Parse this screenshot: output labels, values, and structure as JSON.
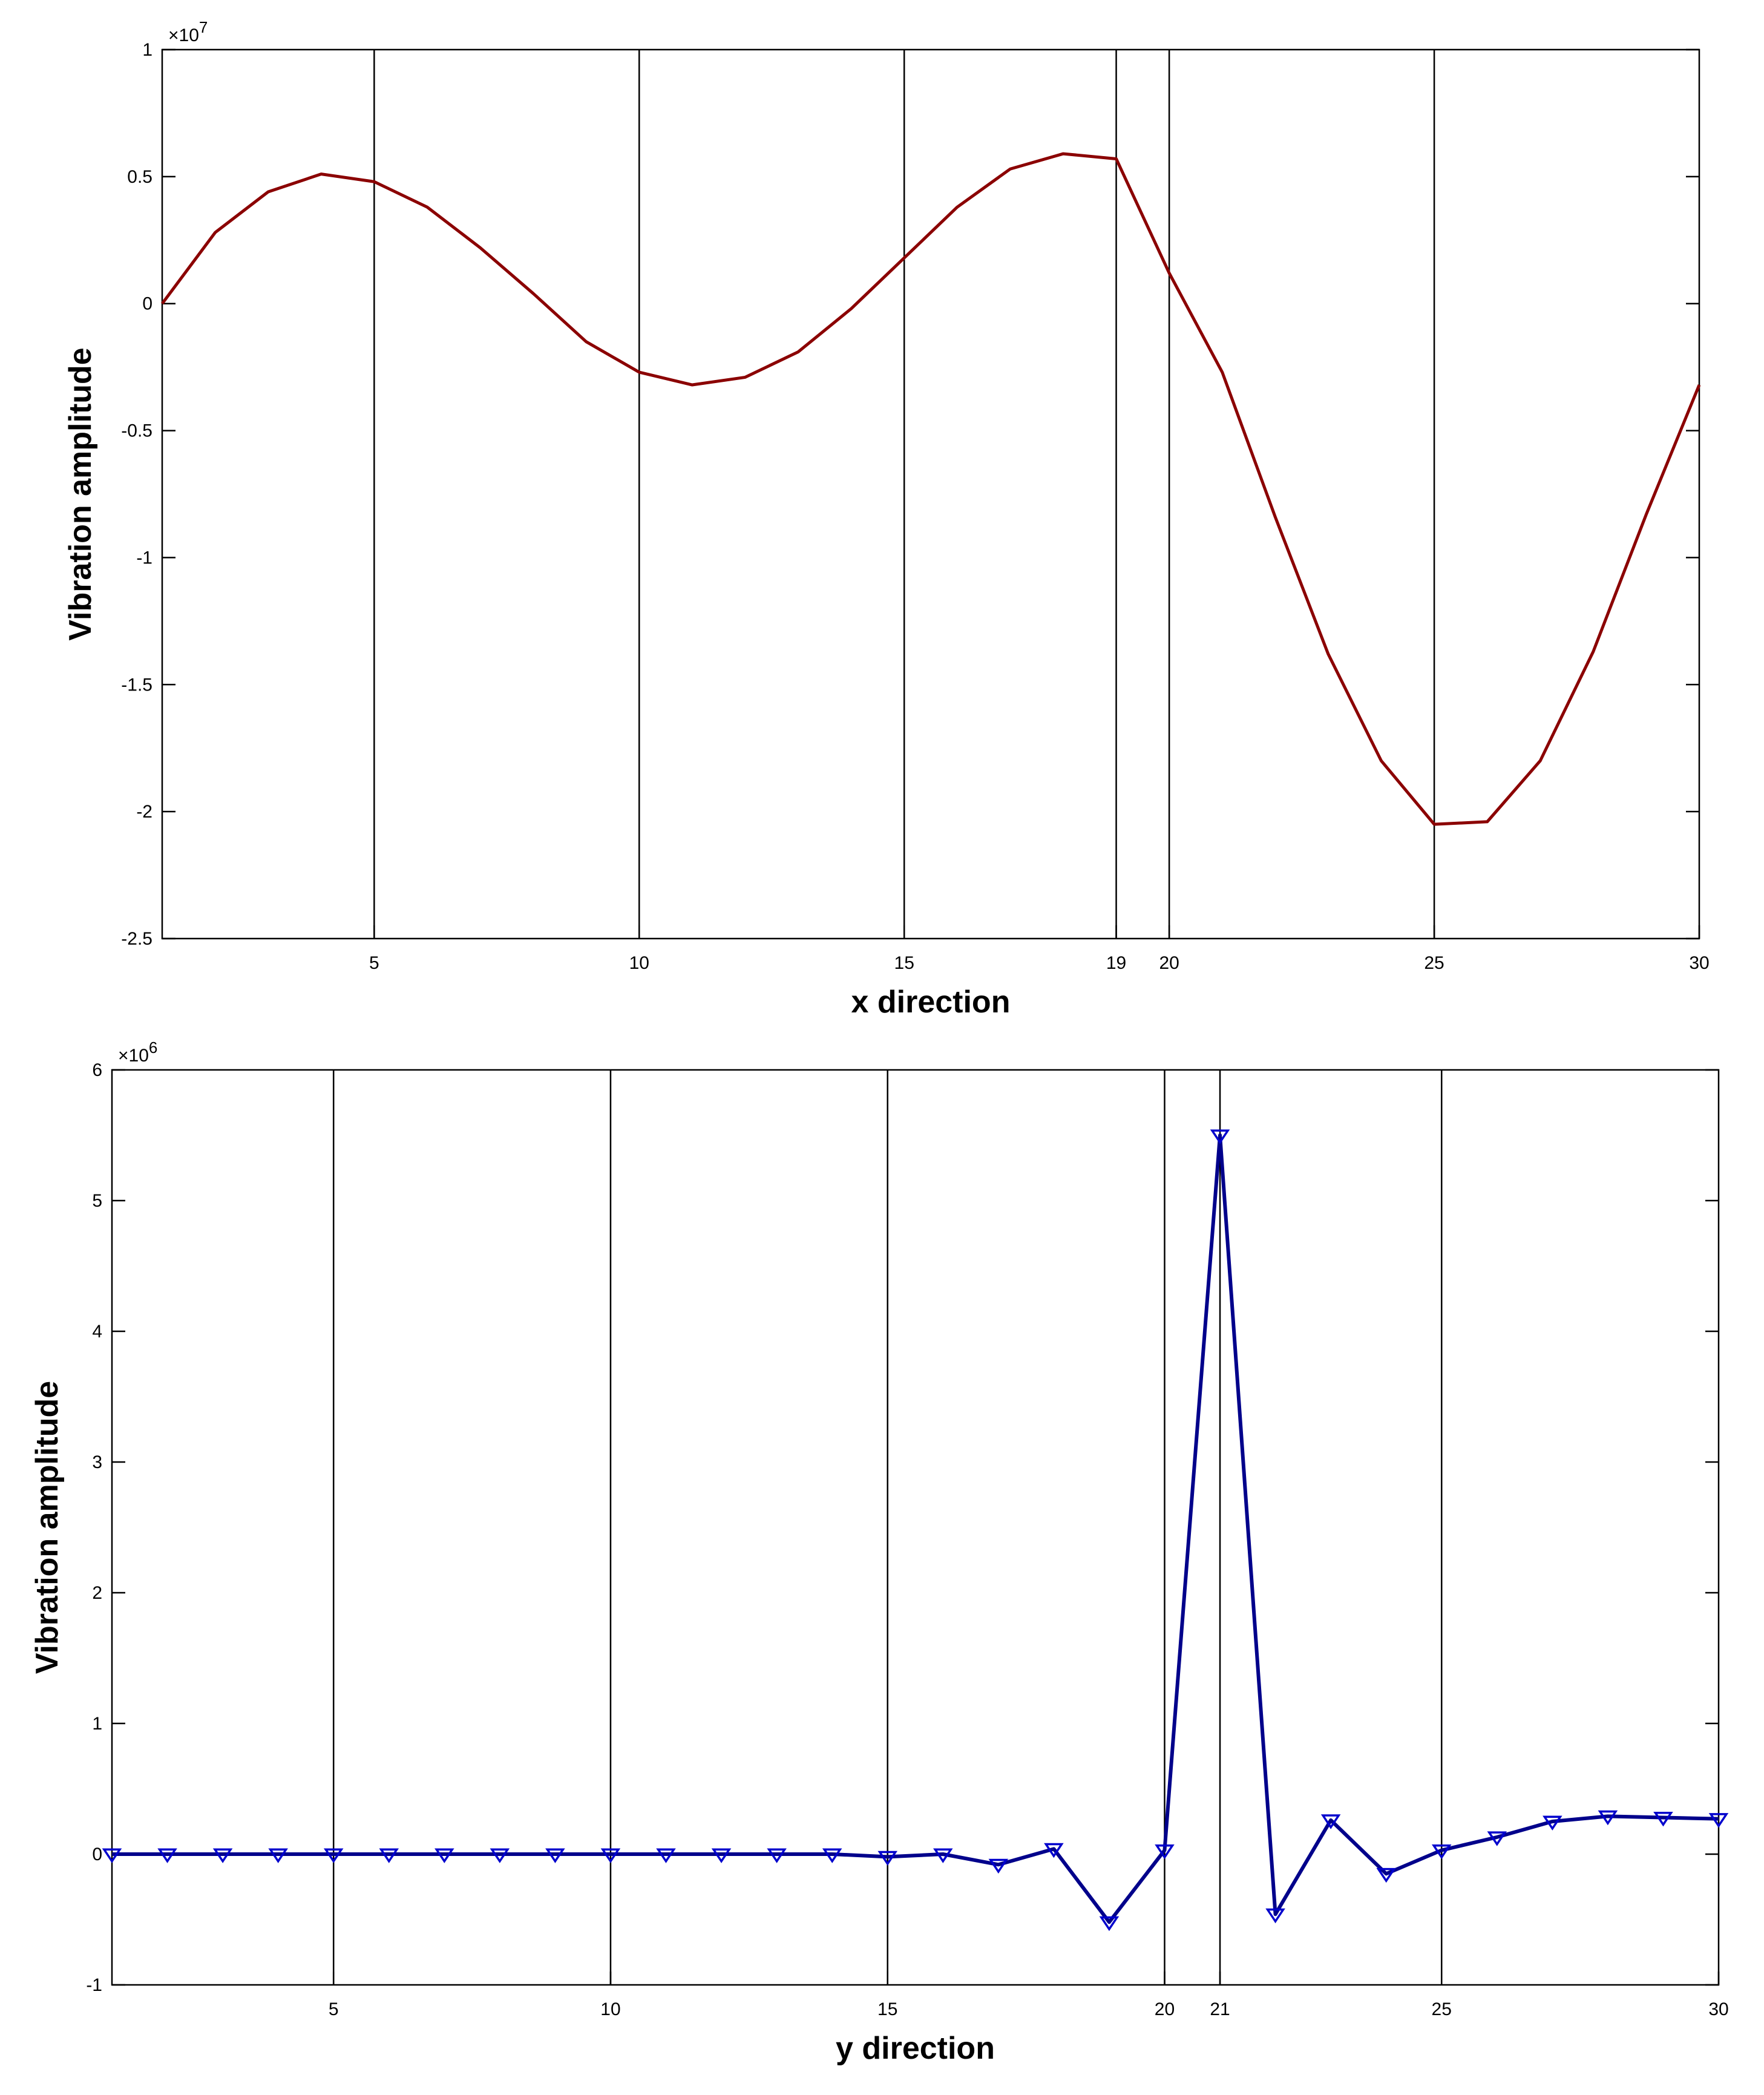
{
  "colors": {
    "top_line": "#8b0000",
    "bottom_line": "#00008b",
    "marker": "#0000cd",
    "axes": "#000000",
    "background": "#ffffff"
  },
  "chart_data": [
    {
      "type": "line",
      "xlabel": "x direction",
      "ylabel": "Vibration amplitude",
      "exponent_base": "×10",
      "exponent_power": "7",
      "xlim": [
        1,
        30
      ],
      "ylim": [
        -2.5,
        1
      ],
      "x_ticks": [
        5,
        10,
        15,
        19,
        20,
        25,
        30
      ],
      "x_tick_labels": [
        "5",
        "10",
        "15",
        "19",
        "20",
        "25",
        "30"
      ],
      "y_ticks": [
        -2.5,
        -2,
        -1.5,
        -1,
        -0.5,
        0,
        0.5,
        1
      ],
      "y_tick_labels": [
        "-2.5",
        "-2",
        "-1.5",
        "-1",
        "-0.5",
        "0",
        "0.5",
        "1"
      ],
      "vertical_lines": [
        5,
        10,
        15,
        19,
        20,
        25
      ],
      "marker": "none",
      "series": [
        {
          "x": [
            1,
            2,
            3,
            4,
            5,
            6,
            7,
            8,
            9,
            10,
            11,
            12,
            13,
            14,
            15,
            16,
            17,
            18,
            19,
            20,
            21,
            22,
            23,
            24,
            25,
            26,
            27,
            28,
            29,
            30
          ],
          "values": [
            0.0,
            0.28,
            0.44,
            0.51,
            0.48,
            0.38,
            0.22,
            0.04,
            -0.15,
            -0.27,
            -0.32,
            -0.29,
            -0.19,
            -0.02,
            0.18,
            0.38,
            0.53,
            0.59,
            0.57,
            0.12,
            -0.27,
            -0.84,
            -1.38,
            -1.8,
            -2.05,
            -2.04,
            -1.8,
            -1.37,
            -0.83,
            -0.32
          ]
        }
      ]
    },
    {
      "type": "line",
      "xlabel": "y direction",
      "ylabel": "Vibration amplitude",
      "exponent_base": "×10",
      "exponent_power": "6",
      "xlim": [
        1,
        30
      ],
      "ylim": [
        -1,
        6
      ],
      "x_ticks": [
        5,
        10,
        15,
        20,
        21,
        25,
        30
      ],
      "x_tick_labels": [
        "5",
        "10",
        "15",
        "20",
        "21",
        "25",
        "30"
      ],
      "y_ticks": [
        -1,
        0,
        1,
        2,
        3,
        4,
        5,
        6
      ],
      "y_tick_labels": [
        "-1",
        "0",
        "1",
        "2",
        "3",
        "4",
        "5",
        "6"
      ],
      "vertical_lines": [
        5,
        10,
        15,
        20,
        21,
        25
      ],
      "marker": "triangle-down",
      "series": [
        {
          "x": [
            1,
            2,
            3,
            4,
            5,
            6,
            7,
            8,
            9,
            10,
            11,
            12,
            13,
            14,
            15,
            16,
            17,
            18,
            19,
            20,
            21,
            22,
            23,
            24,
            25,
            26,
            27,
            28,
            29,
            30
          ],
          "values": [
            0,
            0,
            0,
            0,
            0,
            0,
            0,
            0,
            0,
            0,
            0,
            0,
            0,
            0,
            -0.02,
            0,
            -0.08,
            0.04,
            -0.52,
            0.03,
            5.5,
            -0.46,
            0.26,
            -0.15,
            0.03,
            0.13,
            0.25,
            0.29,
            0.28,
            0.27
          ]
        }
      ]
    }
  ]
}
